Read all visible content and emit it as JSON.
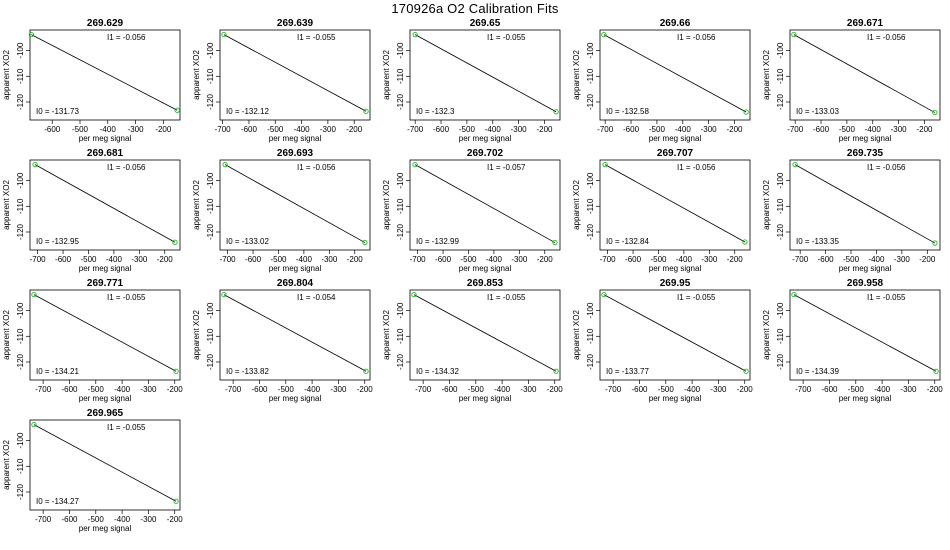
{
  "page": {
    "title": "170926a   O2 Calibration Fits"
  },
  "labels": {
    "xlabel": "per meg signal",
    "ylabel": "apparent XO2",
    "i0_prefix": "I0 =",
    "i1_prefix": "I1 ="
  },
  "chart_data": [
    {
      "type": "scatter",
      "title": "269.629",
      "i0": "-131.73",
      "i1": "-0.056",
      "xlim": [
        -680,
        -140
      ],
      "ylim": [
        -127,
        -92
      ],
      "xticks": [
        -600,
        -500,
        -400,
        -300,
        -200
      ],
      "yticks": [
        -100,
        -110,
        -120
      ],
      "points": [
        {
          "x": -675,
          "y": -93.8
        },
        {
          "x": -150,
          "y": -123.2
        }
      ]
    },
    {
      "type": "scatter",
      "title": "269.639",
      "i0": "-132.12",
      "i1": "-0.055",
      "xlim": [
        -710,
        -140
      ],
      "ylim": [
        -127,
        -92
      ],
      "xticks": [
        -700,
        -600,
        -500,
        -400,
        -300,
        -200
      ],
      "yticks": [
        -100,
        -110,
        -120
      ],
      "points": [
        {
          "x": -695,
          "y": -93.8
        },
        {
          "x": -155,
          "y": -123.6
        }
      ]
    },
    {
      "type": "scatter",
      "title": "269.65",
      "i0": "-132.3",
      "i1": "-0.055",
      "xlim": [
        -720,
        -140
      ],
      "ylim": [
        -127,
        -92
      ],
      "xticks": [
        -700,
        -600,
        -500,
        -400,
        -300,
        -200
      ],
      "yticks": [
        -100,
        -110,
        -120
      ],
      "points": [
        {
          "x": -700,
          "y": -93.8
        },
        {
          "x": -155,
          "y": -123.8
        }
      ]
    },
    {
      "type": "scatter",
      "title": "269.66",
      "i0": "-132.58",
      "i1": "-0.056",
      "xlim": [
        -720,
        -140
      ],
      "ylim": [
        -127,
        -92
      ],
      "xticks": [
        -700,
        -600,
        -500,
        -400,
        -300,
        -200
      ],
      "yticks": [
        -100,
        -110,
        -120
      ],
      "points": [
        {
          "x": -705,
          "y": -93.8
        },
        {
          "x": -155,
          "y": -123.9
        }
      ]
    },
    {
      "type": "scatter",
      "title": "269.671",
      "i0": "-133.03",
      "i1": "-0.056",
      "xlim": [
        -720,
        -140
      ],
      "ylim": [
        -127,
        -92
      ],
      "xticks": [
        -700,
        -600,
        -500,
        -400,
        -300,
        -200
      ],
      "yticks": [
        -100,
        -110,
        -120
      ],
      "points": [
        {
          "x": -705,
          "y": -93.8
        },
        {
          "x": -160,
          "y": -124.1
        }
      ]
    },
    {
      "type": "scatter",
      "title": "269.681",
      "i0": "-132.95",
      "i1": "-0.056",
      "xlim": [
        -730,
        -140
      ],
      "ylim": [
        -127,
        -92
      ],
      "xticks": [
        -700,
        -600,
        -500,
        -400,
        -300,
        -200
      ],
      "yticks": [
        -100,
        -110,
        -120
      ],
      "points": [
        {
          "x": -710,
          "y": -93.8
        },
        {
          "x": -160,
          "y": -124.0
        }
      ]
    },
    {
      "type": "scatter",
      "title": "269.693",
      "i0": "-133.02",
      "i1": "-0.056",
      "xlim": [
        -730,
        -140
      ],
      "ylim": [
        -127,
        -92
      ],
      "xticks": [
        -700,
        -600,
        -500,
        -400,
        -300,
        -200
      ],
      "yticks": [
        -100,
        -110,
        -120
      ],
      "points": [
        {
          "x": -710,
          "y": -93.8
        },
        {
          "x": -160,
          "y": -124.1
        }
      ]
    },
    {
      "type": "scatter",
      "title": "269.702",
      "i0": "-132.99",
      "i1": "-0.057",
      "xlim": [
        -730,
        -140
      ],
      "ylim": [
        -127,
        -92
      ],
      "xticks": [
        -700,
        -600,
        -500,
        -400,
        -300,
        -200
      ],
      "yticks": [
        -100,
        -110,
        -120
      ],
      "points": [
        {
          "x": -710,
          "y": -93.8
        },
        {
          "x": -160,
          "y": -124.1
        }
      ]
    },
    {
      "type": "scatter",
      "title": "269.707",
      "i0": "-132.84",
      "i1": "-0.056",
      "xlim": [
        -730,
        -140
      ],
      "ylim": [
        -127,
        -92
      ],
      "xticks": [
        -700,
        -600,
        -500,
        -400,
        -300,
        -200
      ],
      "yticks": [
        -100,
        -110,
        -120
      ],
      "points": [
        {
          "x": -710,
          "y": -93.8
        },
        {
          "x": -160,
          "y": -123.9
        }
      ]
    },
    {
      "type": "scatter",
      "title": "269.735",
      "i0": "-133.35",
      "i1": "-0.056",
      "xlim": [
        -740,
        -150
      ],
      "ylim": [
        -127,
        -92
      ],
      "xticks": [
        -700,
        -600,
        -500,
        -400,
        -300,
        -200
      ],
      "yticks": [
        -100,
        -110,
        -120
      ],
      "points": [
        {
          "x": -720,
          "y": -93.8
        },
        {
          "x": -170,
          "y": -124.3
        }
      ]
    },
    {
      "type": "scatter",
      "title": "269.771",
      "i0": "-134.21",
      "i1": "-0.055",
      "xlim": [
        -750,
        -180
      ],
      "ylim": [
        -127,
        -92
      ],
      "xticks": [
        -700,
        -600,
        -500,
        -400,
        -300,
        -200
      ],
      "yticks": [
        -100,
        -110,
        -120
      ],
      "points": [
        {
          "x": -735,
          "y": -93.8
        },
        {
          "x": -195,
          "y": -123.6
        }
      ]
    },
    {
      "type": "scatter",
      "title": "269.804",
      "i0": "-133.82",
      "i1": "-0.054",
      "xlim": [
        -750,
        -180
      ],
      "ylim": [
        -127,
        -92
      ],
      "xticks": [
        -700,
        -600,
        -500,
        -400,
        -300,
        -200
      ],
      "yticks": [
        -100,
        -110,
        -120
      ],
      "points": [
        {
          "x": -735,
          "y": -93.8
        },
        {
          "x": -195,
          "y": -123.6
        }
      ]
    },
    {
      "type": "scatter",
      "title": "269.853",
      "i0": "-134.32",
      "i1": "-0.055",
      "xlim": [
        -750,
        -180
      ],
      "ylim": [
        -127,
        -92
      ],
      "xticks": [
        -700,
        -600,
        -500,
        -400,
        -300,
        -200
      ],
      "yticks": [
        -100,
        -110,
        -120
      ],
      "points": [
        {
          "x": -735,
          "y": -93.8
        },
        {
          "x": -195,
          "y": -123.6
        }
      ]
    },
    {
      "type": "scatter",
      "title": "269.95",
      "i0": "-133.77",
      "i1": "-0.055",
      "xlim": [
        -750,
        -180
      ],
      "ylim": [
        -127,
        -92
      ],
      "xticks": [
        -700,
        -600,
        -500,
        -400,
        -300,
        -200
      ],
      "yticks": [
        -100,
        -110,
        -120
      ],
      "points": [
        {
          "x": -735,
          "y": -93.8
        },
        {
          "x": -195,
          "y": -123.6
        }
      ]
    },
    {
      "type": "scatter",
      "title": "269.958",
      "i0": "-134.39",
      "i1": "-0.055",
      "xlim": [
        -750,
        -180
      ],
      "ylim": [
        -127,
        -92
      ],
      "xticks": [
        -700,
        -600,
        -500,
        -400,
        -300,
        -200
      ],
      "yticks": [
        -100,
        -110,
        -120
      ],
      "points": [
        {
          "x": -735,
          "y": -93.8
        },
        {
          "x": -195,
          "y": -123.6
        }
      ]
    },
    {
      "type": "scatter",
      "title": "269.965",
      "i0": "-134.27",
      "i1": "-0.055",
      "xlim": [
        -750,
        -180
      ],
      "ylim": [
        -127,
        -92
      ],
      "xticks": [
        -700,
        -600,
        -500,
        -400,
        -300,
        -200
      ],
      "yticks": [
        -100,
        -110,
        -120
      ],
      "points": [
        {
          "x": -735,
          "y": -93.8
        },
        {
          "x": -195,
          "y": -123.6
        }
      ]
    }
  ]
}
